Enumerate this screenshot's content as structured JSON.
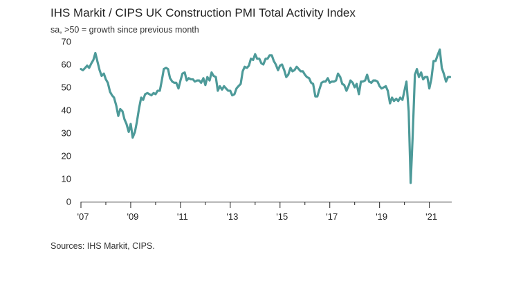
{
  "chart_data": {
    "type": "line",
    "title": "IHS Markit / CIPS UK Construction PMI Total Activity Index",
    "subtitle": "sa, >50 = growth since previous month",
    "source": "Sources: IHS Markit, CIPS.",
    "xlabel": "",
    "ylabel": "",
    "ylim": [
      0,
      70
    ],
    "xlim": [
      2007.0,
      2021.9
    ],
    "yticks": [
      0,
      10,
      20,
      30,
      40,
      50,
      60,
      70
    ],
    "xticks": [
      {
        "value": 2007,
        "label": "'07"
      },
      {
        "value": 2009,
        "label": "'09"
      },
      {
        "value": 2011,
        "label": "'11"
      },
      {
        "value": 2013,
        "label": "'13"
      },
      {
        "value": 2015,
        "label": "'15"
      },
      {
        "value": 2017,
        "label": "'17"
      },
      {
        "value": 2019,
        "label": "'19"
      },
      {
        "value": 2021,
        "label": "'21"
      }
    ],
    "series_color": "#4d9a99",
    "series": [
      {
        "name": "Total Activity Index",
        "points": [
          [
            2007.0,
            58.0
          ],
          [
            2007.08,
            57.5
          ],
          [
            2007.17,
            58.5
          ],
          [
            2007.25,
            59.5
          ],
          [
            2007.33,
            58.5
          ],
          [
            2007.42,
            60.5
          ],
          [
            2007.5,
            62.0
          ],
          [
            2007.58,
            65.0
          ],
          [
            2007.67,
            61.0
          ],
          [
            2007.75,
            57.5
          ],
          [
            2007.83,
            55.0
          ],
          [
            2007.92,
            56.0
          ],
          [
            2008.0,
            53.5
          ],
          [
            2008.08,
            52.0
          ],
          [
            2008.17,
            48.0
          ],
          [
            2008.25,
            46.5
          ],
          [
            2008.33,
            45.5
          ],
          [
            2008.42,
            42.0
          ],
          [
            2008.5,
            37.5
          ],
          [
            2008.58,
            40.5
          ],
          [
            2008.67,
            39.5
          ],
          [
            2008.75,
            36.0
          ],
          [
            2008.83,
            34.0
          ],
          [
            2008.92,
            30.5
          ],
          [
            2009.0,
            34.0
          ],
          [
            2009.08,
            28.0
          ],
          [
            2009.17,
            30.5
          ],
          [
            2009.25,
            35.0
          ],
          [
            2009.33,
            40.5
          ],
          [
            2009.42,
            45.5
          ],
          [
            2009.5,
            44.5
          ],
          [
            2009.58,
            47.0
          ],
          [
            2009.67,
            47.5
          ],
          [
            2009.75,
            47.0
          ],
          [
            2009.83,
            46.5
          ],
          [
            2009.92,
            47.5
          ],
          [
            2010.0,
            47.0
          ],
          [
            2010.08,
            48.5
          ],
          [
            2010.17,
            48.5
          ],
          [
            2010.25,
            53.0
          ],
          [
            2010.33,
            58.0
          ],
          [
            2010.42,
            58.5
          ],
          [
            2010.5,
            58.0
          ],
          [
            2010.58,
            54.0
          ],
          [
            2010.67,
            52.5
          ],
          [
            2010.75,
            52.0
          ],
          [
            2010.83,
            52.0
          ],
          [
            2010.92,
            49.5
          ],
          [
            2011.0,
            53.0
          ],
          [
            2011.08,
            56.0
          ],
          [
            2011.17,
            56.5
          ],
          [
            2011.25,
            53.0
          ],
          [
            2011.33,
            54.0
          ],
          [
            2011.42,
            53.5
          ],
          [
            2011.5,
            53.5
          ],
          [
            2011.58,
            52.5
          ],
          [
            2011.67,
            53.0
          ],
          [
            2011.75,
            53.0
          ],
          [
            2011.83,
            52.0
          ],
          [
            2011.92,
            54.0
          ],
          [
            2012.0,
            51.0
          ],
          [
            2012.08,
            54.5
          ],
          [
            2012.17,
            53.0
          ],
          [
            2012.25,
            56.5
          ],
          [
            2012.33,
            55.0
          ],
          [
            2012.42,
            54.5
          ],
          [
            2012.5,
            48.5
          ],
          [
            2012.58,
            50.5
          ],
          [
            2012.67,
            49.0
          ],
          [
            2012.75,
            50.5
          ],
          [
            2012.83,
            49.5
          ],
          [
            2012.92,
            48.5
          ],
          [
            2013.0,
            48.5
          ],
          [
            2013.08,
            46.5
          ],
          [
            2013.17,
            47.0
          ],
          [
            2013.25,
            49.5
          ],
          [
            2013.33,
            50.5
          ],
          [
            2013.42,
            51.5
          ],
          [
            2013.5,
            57.0
          ],
          [
            2013.58,
            59.0
          ],
          [
            2013.67,
            58.5
          ],
          [
            2013.75,
            59.5
          ],
          [
            2013.83,
            62.5
          ],
          [
            2013.92,
            62.0
          ],
          [
            2014.0,
            64.5
          ],
          [
            2014.08,
            62.5
          ],
          [
            2014.17,
            62.5
          ],
          [
            2014.25,
            60.5
          ],
          [
            2014.33,
            60.0
          ],
          [
            2014.42,
            62.5
          ],
          [
            2014.5,
            62.5
          ],
          [
            2014.58,
            64.0
          ],
          [
            2014.67,
            64.0
          ],
          [
            2014.75,
            61.5
          ],
          [
            2014.83,
            60.0
          ],
          [
            2014.92,
            57.5
          ],
          [
            2015.0,
            59.5
          ],
          [
            2015.08,
            60.0
          ],
          [
            2015.17,
            57.5
          ],
          [
            2015.25,
            54.5
          ],
          [
            2015.33,
            55.5
          ],
          [
            2015.42,
            58.5
          ],
          [
            2015.5,
            57.0
          ],
          [
            2015.58,
            57.5
          ],
          [
            2015.67,
            59.0
          ],
          [
            2015.75,
            58.0
          ],
          [
            2015.83,
            57.0
          ],
          [
            2015.92,
            57.0
          ],
          [
            2016.0,
            55.5
          ],
          [
            2016.08,
            54.5
          ],
          [
            2016.17,
            54.0
          ],
          [
            2016.25,
            52.0
          ],
          [
            2016.33,
            51.5
          ],
          [
            2016.42,
            46.0
          ],
          [
            2016.5,
            46.0
          ],
          [
            2016.58,
            49.0
          ],
          [
            2016.67,
            52.0
          ],
          [
            2016.75,
            52.5
          ],
          [
            2016.83,
            52.5
          ],
          [
            2016.92,
            54.0
          ],
          [
            2017.0,
            52.0
          ],
          [
            2017.08,
            52.5
          ],
          [
            2017.17,
            52.5
          ],
          [
            2017.25,
            53.0
          ],
          [
            2017.33,
            56.0
          ],
          [
            2017.42,
            54.5
          ],
          [
            2017.5,
            51.5
          ],
          [
            2017.58,
            51.0
          ],
          [
            2017.67,
            48.5
          ],
          [
            2017.75,
            50.5
          ],
          [
            2017.83,
            53.0
          ],
          [
            2017.92,
            52.0
          ],
          [
            2018.0,
            50.0
          ],
          [
            2018.08,
            51.5
          ],
          [
            2018.17,
            47.0
          ],
          [
            2018.25,
            52.5
          ],
          [
            2018.33,
            52.5
          ],
          [
            2018.42,
            53.0
          ],
          [
            2018.5,
            55.5
          ],
          [
            2018.58,
            52.5
          ],
          [
            2018.67,
            52.0
          ],
          [
            2018.75,
            53.0
          ],
          [
            2018.83,
            53.0
          ],
          [
            2018.92,
            52.5
          ],
          [
            2019.0,
            50.5
          ],
          [
            2019.08,
            49.5
          ],
          [
            2019.17,
            50.0
          ],
          [
            2019.25,
            50.5
          ],
          [
            2019.33,
            48.5
          ],
          [
            2019.42,
            43.0
          ],
          [
            2019.5,
            45.5
          ],
          [
            2019.58,
            44.0
          ],
          [
            2019.67,
            45.0
          ],
          [
            2019.75,
            44.0
          ],
          [
            2019.83,
            45.5
          ],
          [
            2019.92,
            44.5
          ],
          [
            2020.0,
            48.5
          ],
          [
            2020.08,
            52.5
          ],
          [
            2020.17,
            39.5
          ],
          [
            2020.25,
            8.2
          ],
          [
            2020.33,
            28.5
          ],
          [
            2020.42,
            55.5
          ],
          [
            2020.5,
            58.0
          ],
          [
            2020.58,
            54.5
          ],
          [
            2020.67,
            56.5
          ],
          [
            2020.75,
            53.5
          ],
          [
            2020.83,
            54.5
          ],
          [
            2020.92,
            54.5
          ],
          [
            2021.0,
            49.5
          ],
          [
            2021.08,
            53.5
          ],
          [
            2021.17,
            61.5
          ],
          [
            2021.25,
            61.5
          ],
          [
            2021.33,
            64.0
          ],
          [
            2021.42,
            66.5
          ],
          [
            2021.5,
            58.5
          ],
          [
            2021.58,
            56.0
          ],
          [
            2021.67,
            52.5
          ],
          [
            2021.75,
            54.5
          ],
          [
            2021.83,
            54.5
          ]
        ]
      }
    ]
  }
}
